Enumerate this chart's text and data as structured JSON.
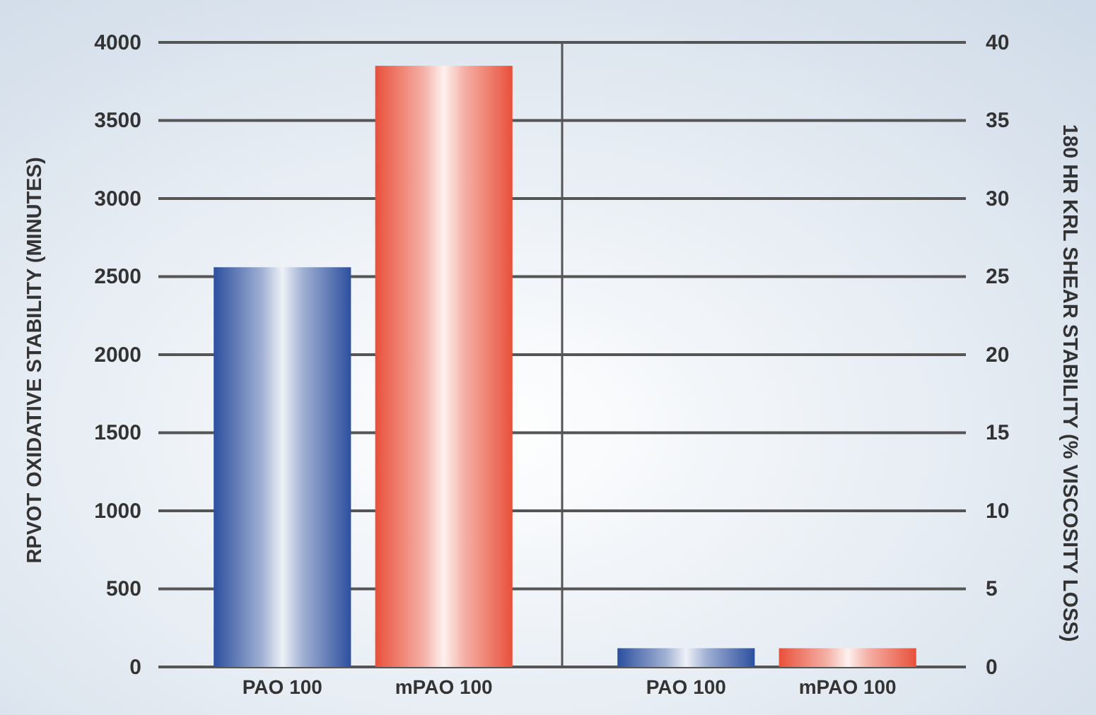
{
  "chart_data": [
    {
      "type": "bar",
      "categories": [
        "PAO 100",
        "mPAO 100"
      ],
      "ylabel": "RPVOT OXIDATIVE STABILITY (MINUTES)",
      "series": [
        {
          "values": [
            2560,
            3850
          ],
          "colors": [
            "#2c4f9e",
            "#e8503a"
          ]
        }
      ],
      "ylim": [
        0,
        4000
      ],
      "yticks": [
        0,
        500,
        1000,
        1500,
        2000,
        2500,
        3000,
        3500,
        4000
      ],
      "grid": "y"
    },
    {
      "type": "bar",
      "categories": [
        "PAO 100",
        "mPAO 100"
      ],
      "y2label": "180 HR KRL SHEAR STABILITY (% VISCOSITY LOSS)",
      "series": [
        {
          "axis": "y2",
          "values": [
            1.2,
            1.2
          ],
          "colors": [
            "#2c4f9e",
            "#e8503a"
          ]
        }
      ],
      "y2lim": [
        0,
        40
      ],
      "y2ticks": [
        0,
        5,
        10,
        15,
        20,
        25,
        30,
        35,
        40
      ],
      "grid": "y"
    }
  ]
}
